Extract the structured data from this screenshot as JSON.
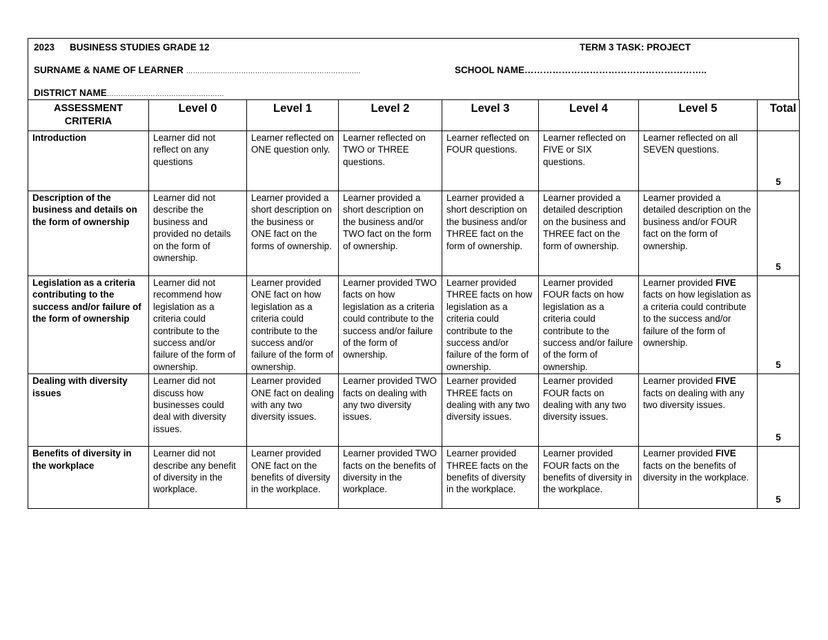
{
  "header": {
    "year": "2023",
    "subject": "BUSINESS STUDIES GRADE 12",
    "task": "TERM 3 TASK: PROJECT",
    "learner_label": "SURNAME & NAME OF LEARNER",
    "learner_dots": "………………………………………………………………….",
    "school_label": "SCHOOL NAME",
    "school_dots": "…………………………………………………..",
    "district_label": "DISTRICT NAME",
    "district_dots": "……………………………………………"
  },
  "columns": [
    "ASSESSMENT CRITERIA",
    "Level 0",
    "Level 1",
    "Level 2",
    "Level 3",
    "Level 4",
    "Level 5",
    "Total"
  ],
  "rows": [
    {
      "criteria": "Introduction",
      "cells": [
        [
          {
            "t": "Learner did not reflect on any questions"
          }
        ],
        [
          {
            "t": "Learner reflected on ONE question only."
          }
        ],
        [
          {
            "t": "Learner reflected on TWO or THREE questions."
          }
        ],
        [
          {
            "t": "Learner reflected on FOUR questions."
          }
        ],
        [
          {
            "t": "Learner reflected on FIVE or SIX questions."
          }
        ],
        [
          {
            "t": "Learner reflected on all SEVEN questions."
          }
        ]
      ],
      "total": "5"
    },
    {
      "criteria": "Description of the business and details on the form of ownership",
      "cells": [
        [
          {
            "t": "Learner did not describe the business and provided no details on the form of ownership."
          }
        ],
        [
          {
            "t": "Learner provided a short description on the business or ONE fact on the forms of ownership."
          }
        ],
        [
          {
            "t": "Learner provided a short description on the business and/or TWO fact on the form of ownership."
          }
        ],
        [
          {
            "t": "Learner provided a short description on the business and/or THREE fact on the form of ownership."
          }
        ],
        [
          {
            "t": "Learner provided a detailed description on the business and THREE fact on the form of ownership."
          }
        ],
        [
          {
            "t": "Learner provided a detailed description on the business and/or FOUR fact on the form of ownership."
          }
        ]
      ],
      "total": "5"
    },
    {
      "criteria": "Legislation as a criteria contributing to the success and/or failure of the form of ownership",
      "cells": [
        [
          {
            "t": "Learner did not recommend how legislation as a criteria could contribute to the success and/or failure of the form of ownership."
          }
        ],
        [
          {
            "t": "Learner provided ONE fact on how legislation as a criteria could contribute to the success and/or failure of the form of ownership."
          }
        ],
        [
          {
            "t": "Learner provided TWO facts on how legislation as a criteria could contribute to the success and/or failure of the form of ownership."
          }
        ],
        [
          {
            "t": "Learner provided THREE facts on how legislation as a criteria could contribute to the success and/or failure of the form of ownership."
          }
        ],
        [
          {
            "t": "Learner provided FOUR facts on how legislation as a criteria could contribute to the success and/or failure of the form of ownership."
          }
        ],
        [
          {
            "t": "Learner provided "
          },
          {
            "t": "FIVE",
            "b": true
          },
          {
            "t": " facts on how legislation as a criteria could contribute to the success and/or failure of the form of ownership."
          }
        ]
      ],
      "total": "5"
    },
    {
      "criteria": "Dealing with diversity issues",
      "cells": [
        [
          {
            "t": "Learner did not discuss how businesses could deal with diversity issues."
          }
        ],
        [
          {
            "t": "Learner provided ONE fact on dealing with any two diversity issues."
          }
        ],
        [
          {
            "t": "Learner provided TWO facts on dealing with any two diversity issues."
          }
        ],
        [
          {
            "t": "Learner provided THREE facts on dealing with any two diversity issues."
          }
        ],
        [
          {
            "t": "Learner provided FOUR facts on dealing with any two diversity issues."
          }
        ],
        [
          {
            "t": "Learner provided "
          },
          {
            "t": "FIVE",
            "b": true
          },
          {
            "t": " facts on dealing with any two diversity issues."
          }
        ]
      ],
      "total": "5"
    },
    {
      "criteria": "Benefits of diversity in the workplace",
      "cells": [
        [
          {
            "t": "Learner did not describe any benefit of diversity in the workplace."
          }
        ],
        [
          {
            "t": "Learner provided ONE fact on the benefits of diversity in the workplace."
          }
        ],
        [
          {
            "t": "Learner provided TWO facts on the benefits of diversity in the workplace."
          }
        ],
        [
          {
            "t": "Learner provided THREE facts on the benefits of diversity in the workplace."
          }
        ],
        [
          {
            "t": "Learner provided FOUR facts on the benefits of diversity in the workplace."
          }
        ],
        [
          {
            "t": "Learner provided "
          },
          {
            "t": "FIVE",
            "b": true
          },
          {
            "t": " facts on the benefits of diversity in the workplace."
          }
        ]
      ],
      "total": "5"
    }
  ]
}
